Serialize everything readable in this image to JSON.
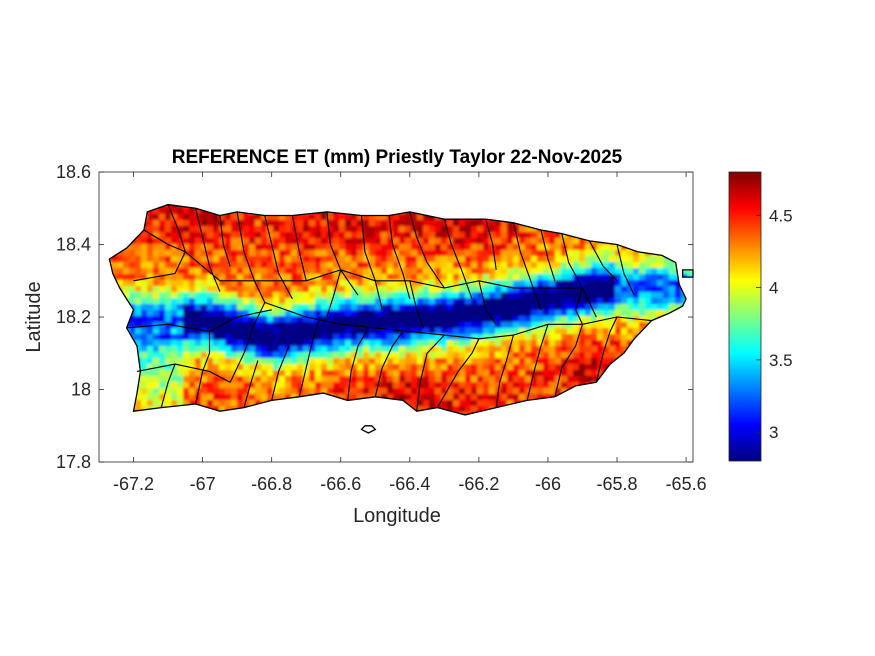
{
  "figure": {
    "title": "REFERENCE ET (mm) Priestly Taylor 22-Nov-2025",
    "xlabel": "Longitude",
    "ylabel": "Latitude"
  },
  "axes": {
    "xlim": [
      -67.3,
      -65.58
    ],
    "ylim": [
      17.8,
      18.6
    ],
    "xticks": [
      -67.2,
      -67,
      -66.8,
      -66.6,
      -66.4,
      -66.2,
      -66,
      -65.8,
      -65.6
    ],
    "xtick_labels": [
      "-67.2",
      "-67",
      "-66.8",
      "-66.6",
      "-66.4",
      "-66.2",
      "-66",
      "-65.8",
      "-65.6"
    ],
    "yticks": [
      17.8,
      18,
      18.2,
      18.4,
      18.6
    ],
    "ytick_labels": [
      "17.8",
      "18",
      "18.2",
      "18.4",
      "18.6"
    ]
  },
  "colorbar": {
    "colormap": "jet",
    "range": [
      2.8,
      4.8
    ],
    "ticks": [
      3,
      3.5,
      4,
      4.5
    ],
    "tick_labels": [
      "3",
      "3.5",
      "4",
      "4.5"
    ]
  },
  "chart_data": {
    "type": "heatmap",
    "title": "REFERENCE ET (mm) Priestly Taylor 22-Nov-2025",
    "xlabel": "Longitude",
    "ylabel": "Latitude",
    "xlim": [
      -67.3,
      -65.58
    ],
    "ylim": [
      17.8,
      18.6
    ],
    "value_range": [
      2.8,
      4.8
    ],
    "colormap": "jet",
    "grid": false,
    "low_band": [
      [
        -67.0,
        18.19
      ],
      [
        -66.8,
        18.14
      ],
      [
        -66.6,
        18.18
      ],
      [
        -66.4,
        18.19
      ],
      [
        -66.2,
        18.21
      ],
      [
        -66.0,
        18.25
      ],
      [
        -65.85,
        18.28
      ]
    ],
    "high_regions": [
      [
        -66.4,
        17.98,
        4.7
      ],
      [
        -66.25,
        18.47,
        4.7
      ],
      [
        -65.85,
        18.06,
        4.7
      ],
      [
        -67.0,
        18.47,
        4.6
      ],
      [
        -66.6,
        18.47,
        4.6
      ],
      [
        -67.2,
        18.05,
        4.2
      ]
    ]
  },
  "island": {
    "outline": [
      [
        -67.27,
        18.36
      ],
      [
        -67.22,
        18.39
      ],
      [
        -67.17,
        18.44
      ],
      [
        -67.16,
        18.49
      ],
      [
        -67.1,
        18.51
      ],
      [
        -67.02,
        18.5
      ],
      [
        -66.95,
        18.48
      ],
      [
        -66.9,
        18.49
      ],
      [
        -66.82,
        18.48
      ],
      [
        -66.74,
        18.48
      ],
      [
        -66.64,
        18.49
      ],
      [
        -66.54,
        18.48
      ],
      [
        -66.46,
        18.48
      ],
      [
        -66.4,
        18.49
      ],
      [
        -66.3,
        18.47
      ],
      [
        -66.18,
        18.47
      ],
      [
        -66.1,
        18.46
      ],
      [
        -66.02,
        18.44
      ],
      [
        -65.96,
        18.43
      ],
      [
        -65.88,
        18.41
      ],
      [
        -65.8,
        18.4
      ],
      [
        -65.74,
        18.38
      ],
      [
        -65.67,
        18.37
      ],
      [
        -65.63,
        18.35
      ],
      [
        -65.62,
        18.29
      ],
      [
        -65.6,
        18.25
      ],
      [
        -65.61,
        18.23
      ],
      [
        -65.65,
        18.21
      ],
      [
        -65.7,
        18.19
      ],
      [
        -65.75,
        18.14
      ],
      [
        -65.78,
        18.1
      ],
      [
        -65.82,
        18.07
      ],
      [
        -65.86,
        18.02
      ],
      [
        -65.92,
        18.01
      ],
      [
        -65.98,
        17.98
      ],
      [
        -66.06,
        17.97
      ],
      [
        -66.15,
        17.95
      ],
      [
        -66.24,
        17.93
      ],
      [
        -66.32,
        17.95
      ],
      [
        -66.38,
        17.94
      ],
      [
        -66.42,
        17.97
      ],
      [
        -66.5,
        17.98
      ],
      [
        -66.58,
        17.97
      ],
      [
        -66.65,
        17.99
      ],
      [
        -66.72,
        17.98
      ],
      [
        -66.8,
        17.97
      ],
      [
        -66.88,
        17.95
      ],
      [
        -66.95,
        17.94
      ],
      [
        -67.02,
        17.96
      ],
      [
        -67.12,
        17.95
      ],
      [
        -67.2,
        17.94
      ],
      [
        -67.19,
        17.99
      ],
      [
        -67.18,
        18.05
      ],
      [
        -67.19,
        18.12
      ],
      [
        -67.22,
        18.17
      ],
      [
        -67.2,
        18.22
      ],
      [
        -67.24,
        18.28
      ],
      [
        -67.26,
        18.32
      ]
    ],
    "caja_de_muertos": [
      [
        -66.53,
        17.9
      ],
      [
        -66.51,
        17.9
      ],
      [
        -66.5,
        17.89
      ],
      [
        -66.52,
        17.88
      ],
      [
        -66.54,
        17.89
      ]
    ],
    "culebra": [
      [
        -65.61,
        18.33
      ],
      [
        -65.58,
        18.33
      ],
      [
        -65.58,
        18.31
      ],
      [
        -65.61,
        18.31
      ]
    ],
    "municipal_lines": [
      [
        [
          -67.17,
          18.44
        ],
        [
          -67.1,
          18.4
        ],
        [
          -67.05,
          18.38
        ]
      ],
      [
        [
          -67.1,
          18.51
        ],
        [
          -67.07,
          18.44
        ],
        [
          -67.05,
          18.38
        ],
        [
          -67.08,
          18.32
        ],
        [
          -67.2,
          18.3
        ]
      ],
      [
        [
          -67.02,
          18.5
        ],
        [
          -67.0,
          18.42
        ],
        [
          -66.98,
          18.34
        ],
        [
          -66.95,
          18.27
        ]
      ],
      [
        [
          -66.95,
          18.48
        ],
        [
          -66.94,
          18.4
        ],
        [
          -66.92,
          18.34
        ]
      ],
      [
        [
          -66.9,
          18.49
        ],
        [
          -66.88,
          18.38
        ],
        [
          -66.85,
          18.3
        ],
        [
          -66.82,
          18.24
        ]
      ],
      [
        [
          -66.82,
          18.48
        ],
        [
          -66.8,
          18.4
        ],
        [
          -66.78,
          18.32
        ],
        [
          -66.74,
          18.25
        ]
      ],
      [
        [
          -66.74,
          18.48
        ],
        [
          -66.72,
          18.38
        ],
        [
          -66.7,
          18.3
        ]
      ],
      [
        [
          -66.64,
          18.49
        ],
        [
          -66.63,
          18.4
        ],
        [
          -66.6,
          18.33
        ],
        [
          -66.55,
          18.26
        ]
      ],
      [
        [
          -66.54,
          18.48
        ],
        [
          -66.53,
          18.38
        ],
        [
          -66.5,
          18.3
        ],
        [
          -66.48,
          18.22
        ]
      ],
      [
        [
          -66.46,
          18.48
        ],
        [
          -66.45,
          18.4
        ],
        [
          -66.42,
          18.32
        ],
        [
          -66.4,
          18.25
        ]
      ],
      [
        [
          -66.4,
          18.49
        ],
        [
          -66.38,
          18.42
        ],
        [
          -66.35,
          18.35
        ],
        [
          -66.3,
          18.28
        ]
      ],
      [
        [
          -66.3,
          18.47
        ],
        [
          -66.28,
          18.4
        ],
        [
          -66.25,
          18.33
        ],
        [
          -66.22,
          18.25
        ]
      ],
      [
        [
          -66.18,
          18.47
        ],
        [
          -66.16,
          18.4
        ],
        [
          -66.15,
          18.33
        ]
      ],
      [
        [
          -66.1,
          18.46
        ],
        [
          -66.08,
          18.38
        ],
        [
          -66.05,
          18.3
        ],
        [
          -66.02,
          18.22
        ]
      ],
      [
        [
          -66.02,
          18.44
        ],
        [
          -66.0,
          18.36
        ],
        [
          -65.98,
          18.3
        ]
      ],
      [
        [
          -65.96,
          18.43
        ],
        [
          -65.94,
          18.35
        ],
        [
          -65.9,
          18.28
        ],
        [
          -65.86,
          18.2
        ]
      ],
      [
        [
          -65.88,
          18.41
        ],
        [
          -65.84,
          18.34
        ],
        [
          -65.8,
          18.3
        ]
      ],
      [
        [
          -65.8,
          18.4
        ],
        [
          -65.78,
          18.32
        ],
        [
          -65.75,
          18.26
        ]
      ],
      [
        [
          -67.22,
          18.17
        ],
        [
          -67.1,
          18.18
        ],
        [
          -66.98,
          18.16
        ],
        [
          -66.9,
          18.2
        ],
        [
          -66.8,
          18.22
        ]
      ],
      [
        [
          -67.19,
          18.05
        ],
        [
          -67.08,
          18.07
        ],
        [
          -66.98,
          18.05
        ],
        [
          -66.92,
          18.02
        ]
      ],
      [
        [
          -67.05,
          18.38
        ],
        [
          -66.95,
          18.3
        ],
        [
          -66.85,
          18.3
        ],
        [
          -66.7,
          18.3
        ],
        [
          -66.6,
          18.33
        ],
        [
          -66.5,
          18.3
        ],
        [
          -66.4,
          18.3
        ],
        [
          -66.3,
          18.28
        ],
        [
          -66.2,
          18.3
        ],
        [
          -66.1,
          18.28
        ],
        [
          -66.0,
          18.28
        ],
        [
          -65.9,
          18.28
        ]
      ],
      [
        [
          -66.82,
          18.24
        ],
        [
          -66.7,
          18.2
        ],
        [
          -66.6,
          18.18
        ],
        [
          -66.5,
          18.17
        ],
        [
          -66.4,
          18.16
        ],
        [
          -66.3,
          18.15
        ],
        [
          -66.2,
          18.14
        ],
        [
          -66.1,
          18.15
        ],
        [
          -66.0,
          18.18
        ],
        [
          -65.9,
          18.18
        ],
        [
          -65.8,
          18.2
        ],
        [
          -65.7,
          18.19
        ]
      ],
      [
        [
          -66.92,
          18.02
        ],
        [
          -66.88,
          18.1
        ],
        [
          -66.85,
          18.18
        ],
        [
          -66.82,
          18.24
        ]
      ],
      [
        [
          -66.8,
          17.97
        ],
        [
          -66.78,
          18.05
        ],
        [
          -66.75,
          18.12
        ]
      ],
      [
        [
          -66.72,
          17.98
        ],
        [
          -66.7,
          18.06
        ],
        [
          -66.68,
          18.14
        ],
        [
          -66.66,
          18.2
        ]
      ],
      [
        [
          -66.58,
          17.97
        ],
        [
          -66.57,
          18.05
        ],
        [
          -66.55,
          18.12
        ],
        [
          -66.52,
          18.17
        ]
      ],
      [
        [
          -66.5,
          17.98
        ],
        [
          -66.48,
          18.06
        ],
        [
          -66.45,
          18.12
        ],
        [
          -66.42,
          18.16
        ]
      ],
      [
        [
          -66.38,
          17.94
        ],
        [
          -66.37,
          18.02
        ],
        [
          -66.35,
          18.1
        ],
        [
          -66.3,
          18.15
        ]
      ],
      [
        [
          -66.32,
          17.95
        ],
        [
          -66.26,
          18.05
        ],
        [
          -66.22,
          18.1
        ],
        [
          -66.2,
          18.14
        ]
      ],
      [
        [
          -66.15,
          17.95
        ],
        [
          -66.14,
          18.02
        ],
        [
          -66.12,
          18.08
        ],
        [
          -66.1,
          18.15
        ]
      ],
      [
        [
          -66.06,
          17.97
        ],
        [
          -66.04,
          18.05
        ],
        [
          -66.02,
          18.12
        ],
        [
          -66.0,
          18.18
        ]
      ],
      [
        [
          -65.98,
          17.98
        ],
        [
          -65.96,
          18.06
        ],
        [
          -65.92,
          18.12
        ],
        [
          -65.9,
          18.18
        ]
      ],
      [
        [
          -65.86,
          18.02
        ],
        [
          -65.84,
          18.1
        ],
        [
          -65.82,
          18.16
        ],
        [
          -65.8,
          18.2
        ]
      ],
      [
        [
          -67.12,
          17.95
        ],
        [
          -67.1,
          18.02
        ],
        [
          -67.08,
          18.07
        ]
      ],
      [
        [
          -67.02,
          17.96
        ],
        [
          -67.0,
          18.05
        ],
        [
          -66.98,
          18.1
        ],
        [
          -66.98,
          18.16
        ]
      ],
      [
        [
          -66.88,
          17.95
        ],
        [
          -66.86,
          18.02
        ],
        [
          -66.84,
          18.08
        ]
      ],
      [
        [
          -66.2,
          18.3
        ],
        [
          -66.18,
          18.22
        ],
        [
          -66.15,
          18.18
        ]
      ],
      [
        [
          -66.6,
          18.33
        ],
        [
          -66.62,
          18.26
        ],
        [
          -66.64,
          18.2
        ]
      ],
      [
        [
          -66.4,
          18.3
        ],
        [
          -66.38,
          18.22
        ],
        [
          -66.36,
          18.17
        ]
      ],
      [
        [
          -65.9,
          18.28
        ],
        [
          -65.92,
          18.22
        ],
        [
          -65.9,
          18.18
        ]
      ]
    ]
  }
}
